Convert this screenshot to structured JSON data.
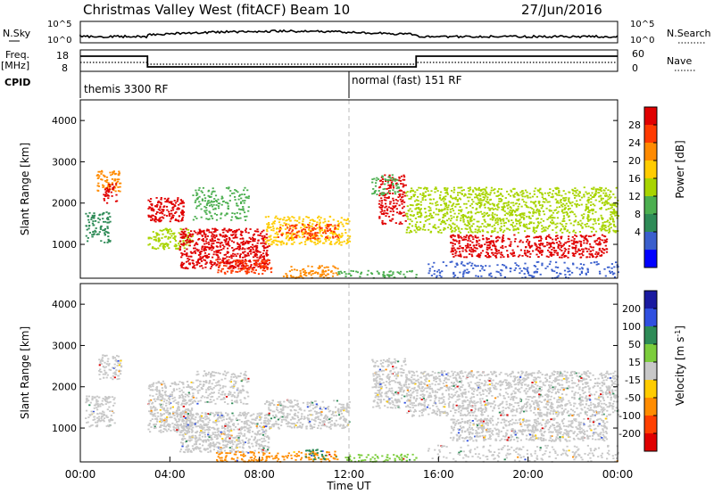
{
  "header": {
    "title": "Christmas Valley West (fitACF)",
    "beam": "Beam 10",
    "date": "27/Jun/2016"
  },
  "top_panels": {
    "nsky": {
      "label": "N.Sky",
      "ticks": [
        "10^5",
        "10^0"
      ],
      "right_label": "N.Search",
      "right_ticks": [
        "10^5",
        "10^0"
      ]
    },
    "freq": {
      "label": "Freq.",
      "unit": "[MHz]",
      "ticks": [
        "18",
        "8"
      ],
      "right_label": "Nave",
      "right_ticks": [
        "60",
        "0"
      ]
    },
    "cpid": {
      "label": "CPID",
      "segments": [
        "themis 3300 RF",
        "normal (fast) 151 RF"
      ]
    }
  },
  "chart_data": [
    {
      "type": "heatmap",
      "ylabel": "Slant Range [km]",
      "yticks": [
        "4000",
        "3000",
        "2000",
        "1000"
      ],
      "yticks_values": [
        4000,
        3000,
        2000,
        1000
      ],
      "ylim": [
        180,
        4500
      ],
      "xlim": [
        0,
        24
      ],
      "colorbar": {
        "label": "Power [dB]",
        "ticks": [
          "28",
          "24",
          "20",
          "16",
          "12",
          "8",
          "4"
        ],
        "colors": [
          "#e00000",
          "#ff3a00",
          "#ff8a00",
          "#ffcc00",
          "#a8d400",
          "#4caf50",
          "#2e8b57",
          "#3a5fcd",
          "#0000ff"
        ]
      }
    },
    {
      "type": "heatmap",
      "ylabel": "Slant Range [km]",
      "yticks": [
        "4000",
        "3000",
        "2000",
        "1000"
      ],
      "yticks_values": [
        4000,
        3000,
        2000,
        1000
      ],
      "ylim": [
        180,
        4500
      ],
      "xlim": [
        0,
        24
      ],
      "xlabel": "Time UT",
      "xticks": [
        "00:00",
        "04:00",
        "08:00",
        "12:00",
        "16:00",
        "20:00",
        "00:00"
      ],
      "xticks_values": [
        0,
        4,
        8,
        12,
        16,
        20,
        24
      ],
      "colorbar": {
        "label": "Velocity [m s",
        "label_sup": "-1",
        "label_end": "]",
        "ticks": [
          "200",
          "100",
          "50",
          "15",
          "-15",
          "-50",
          "-100",
          "-200"
        ],
        "colors": [
          "#1a1aa0",
          "#3050e0",
          "#2e8b57",
          "#7ccd3c",
          "#c8c8c8",
          "#ffcc00",
          "#ff8c00",
          "#ff4000",
          "#e00000"
        ]
      }
    }
  ],
  "regions": {
    "power": [
      {
        "t": [
          0.2,
          1.3
        ],
        "r": [
          1050,
          1800
        ],
        "c": "#2e8b57",
        "d": 0.5
      },
      {
        "t": [
          0.7,
          1.8
        ],
        "r": [
          2300,
          2800
        ],
        "c": "#ff8a00",
        "d": 0.6
      },
      {
        "t": [
          1.0,
          1.6
        ],
        "r": [
          2000,
          2500
        ],
        "c": "#e00000",
        "d": 0.5
      },
      {
        "t": [
          3.0,
          4.6
        ],
        "r": [
          1550,
          2150
        ],
        "c": "#e00000",
        "d": 0.7
      },
      {
        "t": [
          3.0,
          5.0
        ],
        "r": [
          900,
          1400
        ],
        "c": "#a8d400",
        "d": 0.5
      },
      {
        "t": [
          4.4,
          8.4
        ],
        "r": [
          430,
          1400
        ],
        "c": "#e00000",
        "d": 0.7
      },
      {
        "t": [
          5.0,
          7.5
        ],
        "r": [
          1600,
          2400
        ],
        "c": "#4caf50",
        "d": 0.35
      },
      {
        "t": [
          6.0,
          8.5
        ],
        "r": [
          300,
          650
        ],
        "c": "#ff3a00",
        "d": 0.5
      },
      {
        "t": [
          8.2,
          12.0
        ],
        "r": [
          1000,
          1700
        ],
        "c": "#ffcc00",
        "d": 0.5
      },
      {
        "t": [
          8.8,
          11.5
        ],
        "r": [
          1150,
          1500
        ],
        "c": "#ff3a00",
        "d": 0.5
      },
      {
        "t": [
          9.0,
          11.5
        ],
        "r": [
          200,
          500
        ],
        "c": "#ff8a00",
        "d": 0.5
      },
      {
        "t": [
          11.5,
          15.0
        ],
        "r": [
          200,
          380
        ],
        "c": "#4caf50",
        "d": 0.4
      },
      {
        "t": [
          13.3,
          14.5
        ],
        "r": [
          1500,
          2700
        ],
        "c": "#e00000",
        "d": 0.5
      },
      {
        "t": [
          13.0,
          14.2
        ],
        "r": [
          2200,
          2700
        ],
        "c": "#4caf50",
        "d": 0.4
      },
      {
        "t": [
          14.5,
          24.0
        ],
        "r": [
          1300,
          2400
        ],
        "c": "#a8d400",
        "d": 0.5
      },
      {
        "t": [
          16.5,
          23.5
        ],
        "r": [
          700,
          1250
        ],
        "c": "#e00000",
        "d": 0.6
      },
      {
        "t": [
          15.5,
          24.0
        ],
        "r": [
          200,
          600
        ],
        "c": "#3a5fcd",
        "d": 0.25
      }
    ],
    "velocity": [
      {
        "t": [
          0.2,
          1.5
        ],
        "r": [
          1050,
          1800
        ],
        "c": "#c8c8c8",
        "d": 0.6
      },
      {
        "t": [
          0.8,
          1.8
        ],
        "r": [
          2200,
          2800
        ],
        "c": "#c8c8c8",
        "d": 0.6
      },
      {
        "t": [
          3.0,
          5.0
        ],
        "r": [
          900,
          2150
        ],
        "c": "#c8c8c8",
        "d": 0.7
      },
      {
        "t": [
          4.4,
          8.4
        ],
        "r": [
          430,
          1400
        ],
        "c": "#c8c8c8",
        "d": 0.75
      },
      {
        "t": [
          5.0,
          7.5
        ],
        "r": [
          1600,
          2400
        ],
        "c": "#c8c8c8",
        "d": 0.45
      },
      {
        "t": [
          6.0,
          11.5
        ],
        "r": [
          200,
          450
        ],
        "c": "#ff8c00",
        "d": 0.5
      },
      {
        "t": [
          8.2,
          12.0
        ],
        "r": [
          1000,
          1700
        ],
        "c": "#c8c8c8",
        "d": 0.6
      },
      {
        "t": [
          10.0,
          11.0
        ],
        "r": [
          250,
          500
        ],
        "c": "#2e8b57",
        "d": 0.5
      },
      {
        "t": [
          11.8,
          15.0
        ],
        "r": [
          200,
          380
        ],
        "c": "#7ccd3c",
        "d": 0.5
      },
      {
        "t": [
          13.0,
          14.5
        ],
        "r": [
          1500,
          2700
        ],
        "c": "#c8c8c8",
        "d": 0.6
      },
      {
        "t": [
          14.5,
          24.0
        ],
        "r": [
          1300,
          2400
        ],
        "c": "#c8c8c8",
        "d": 0.6
      },
      {
        "t": [
          16.5,
          23.5
        ],
        "r": [
          700,
          1250
        ],
        "c": "#c8c8c8",
        "d": 0.7
      },
      {
        "t": [
          15.5,
          24.0
        ],
        "r": [
          200,
          600
        ],
        "c": "#c8c8c8",
        "d": 0.25
      }
    ],
    "velocity_speckle": [
      "#e00000",
      "#3050e0",
      "#ffcc00",
      "#ff8c00",
      "#2e8b57"
    ]
  }
}
